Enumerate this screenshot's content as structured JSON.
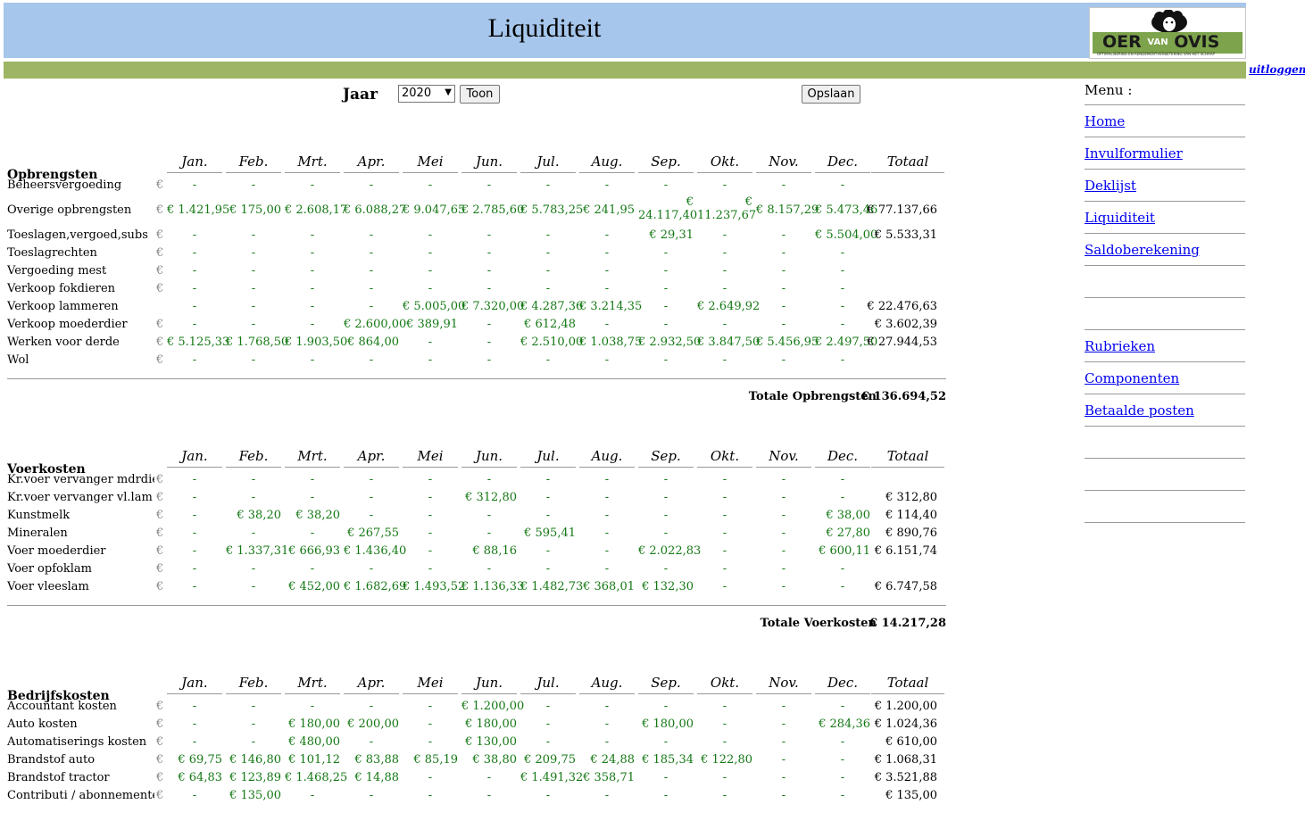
{
  "header": {
    "title": "Liquiditeit",
    "logout": "uitloggen"
  },
  "logo": {
    "text": "OER",
    "text_small": "VAN",
    "text2": "OVIS",
    "tagline": "OPTIMALISERING EN RENDEMENTVERBETERING VAN HET SCHAAP"
  },
  "controls": {
    "year_label": "Jaar",
    "year_value": "2020",
    "show_button": "Toon",
    "save_button": "Opslaan"
  },
  "menu": {
    "title": "Menu :",
    "items": [
      "Home",
      "Invulformulier",
      "Deklijst",
      "Liquiditeit",
      "Saldoberekening",
      "",
      "",
      "Rubrieken",
      "Componenten",
      "Betaalde posten",
      "",
      "",
      ""
    ]
  },
  "columns": [
    "Jan.",
    "Feb.",
    "Mrt.",
    "Apr.",
    "Mei",
    "Jun.",
    "Jul.",
    "Aug.",
    "Sep.",
    "Okt.",
    "Nov.",
    "Dec.",
    "Totaal"
  ],
  "sections": [
    {
      "title": "Opbrengsten",
      "total_label": "Totale Opbrengsten",
      "total_value": "€ 136.694,52",
      "rows": [
        {
          "label": "Beheersvergoeding",
          "euro": "€",
          "values": [
            "-",
            "-",
            "-",
            "-",
            "-",
            "-",
            "-",
            "-",
            "-",
            "-",
            "-",
            "-",
            ""
          ]
        },
        {
          "label": "Overige opbrengsten",
          "euro": "€",
          "tall": true,
          "values": [
            "€ 1.421,95",
            "€ 175,00",
            "€ 2.608,17",
            "€ 6.088,27",
            "€ 9.047,65",
            "€ 2.785,60",
            "€ 5.783,25",
            "€ 241,95",
            "€\n24.117,40",
            "€\n11.237,67",
            "€ 8.157,29",
            "€ 5.473,46",
            "€ 77.137,66"
          ]
        },
        {
          "label": "Toeslagen,vergoed,subs",
          "euro": "€",
          "values": [
            "-",
            "-",
            "-",
            "-",
            "-",
            "-",
            "-",
            "-",
            "€ 29,31",
            "-",
            "-",
            "€ 5.504,00",
            "€ 5.533,31"
          ]
        },
        {
          "label": "Toeslagrechten",
          "euro": "€",
          "values": [
            "-",
            "-",
            "-",
            "-",
            "-",
            "-",
            "-",
            "-",
            "-",
            "-",
            "-",
            "-",
            ""
          ]
        },
        {
          "label": "Vergoeding mest",
          "euro": "€",
          "values": [
            "-",
            "-",
            "-",
            "-",
            "-",
            "-",
            "-",
            "-",
            "-",
            "-",
            "-",
            "-",
            ""
          ]
        },
        {
          "label": "Verkoop fokdieren",
          "euro": "€",
          "values": [
            "-",
            "-",
            "-",
            "-",
            "-",
            "-",
            "-",
            "-",
            "-",
            "-",
            "-",
            "-",
            ""
          ]
        },
        {
          "label": "Verkoop lammeren",
          "euro": "",
          "values": [
            "-",
            "-",
            "-",
            "-",
            "€ 5.005,00",
            "€ 7.320,00",
            "€ 4.287,36",
            "€ 3.214,35",
            "-",
            "€ 2.649,92",
            "-",
            "-",
            "€ 22.476,63"
          ]
        },
        {
          "label": "Verkoop moederdier",
          "euro": "€",
          "values": [
            "-",
            "-",
            "-",
            "€ 2.600,00",
            "€ 389,91",
            "-",
            "€ 612,48",
            "-",
            "-",
            "-",
            "-",
            "-",
            "€ 3.602,39"
          ]
        },
        {
          "label": "Werken voor derde",
          "euro": "€",
          "values": [
            "€ 5.125,33",
            "€ 1.768,50",
            "€ 1.903,50",
            "€ 864,00",
            "-",
            "-",
            "€ 2.510,00",
            "€ 1.038,75",
            "€ 2.932,50",
            "€ 3.847,50",
            "€ 5.456,95",
            "€ 2.497,50",
            "€ 27.944,53"
          ]
        },
        {
          "label": "Wol",
          "euro": "€",
          "values": [
            "-",
            "-",
            "-",
            "-",
            "-",
            "-",
            "-",
            "-",
            "-",
            "-",
            "-",
            "-",
            ""
          ]
        }
      ]
    },
    {
      "title": "Voerkosten",
      "total_label": "Totale Voerkosten",
      "total_value": "€ 14.217,28",
      "rows": [
        {
          "label": "Kr.voer vervanger mdrdier",
          "euro": "€",
          "values": [
            "-",
            "-",
            "-",
            "-",
            "-",
            "-",
            "-",
            "-",
            "-",
            "-",
            "-",
            "-",
            ""
          ]
        },
        {
          "label": "Kr.voer vervanger vl.lam",
          "euro": "€",
          "values": [
            "-",
            "-",
            "-",
            "-",
            "-",
            "€ 312,80",
            "-",
            "-",
            "-",
            "-",
            "-",
            "-",
            "€ 312,80"
          ]
        },
        {
          "label": "Kunstmelk",
          "euro": "€",
          "values": [
            "-",
            "€ 38,20",
            "€ 38,20",
            "-",
            "-",
            "-",
            "-",
            "-",
            "-",
            "-",
            "-",
            "€ 38,00",
            "€ 114,40"
          ]
        },
        {
          "label": "Mineralen",
          "euro": "€",
          "values": [
            "-",
            "-",
            "-",
            "€ 267,55",
            "-",
            "-",
            "€ 595,41",
            "-",
            "-",
            "-",
            "-",
            "€ 27,80",
            "€ 890,76"
          ]
        },
        {
          "label": "Voer moederdier",
          "euro": "€",
          "values": [
            "-",
            "€ 1.337,31",
            "€ 666,93",
            "€ 1.436,40",
            "-",
            "€ 88,16",
            "-",
            "-",
            "€ 2.022,83",
            "-",
            "-",
            "€ 600,11",
            "€ 6.151,74"
          ]
        },
        {
          "label": "Voer opfoklam",
          "euro": "€",
          "values": [
            "-",
            "-",
            "-",
            "-",
            "-",
            "-",
            "-",
            "-",
            "-",
            "-",
            "-",
            "-",
            ""
          ]
        },
        {
          "label": "Voer vleeslam",
          "euro": "€",
          "values": [
            "-",
            "-",
            "€ 452,00",
            "€ 1.682,69",
            "€ 1.493,52",
            "€ 1.136,33",
            "€ 1.482,73",
            "€ 368,01",
            "€ 132,30",
            "-",
            "-",
            "-",
            "€ 6.747,58"
          ]
        }
      ]
    },
    {
      "title": "Bedrijfskosten",
      "total_label": "",
      "total_value": "",
      "rows": [
        {
          "label": "Accountant kosten",
          "euro": "€",
          "values": [
            "-",
            "-",
            "-",
            "-",
            "-",
            "€ 1.200,00",
            "-",
            "-",
            "-",
            "-",
            "-",
            "-",
            "€ 1.200,00"
          ]
        },
        {
          "label": "Auto kosten",
          "euro": "€",
          "values": [
            "-",
            "-",
            "€ 180,00",
            "€ 200,00",
            "-",
            "€ 180,00",
            "-",
            "-",
            "€ 180,00",
            "-",
            "-",
            "€ 284,36",
            "€ 1.024,36"
          ]
        },
        {
          "label": "Automatiserings kosten",
          "euro": "€",
          "values": [
            "-",
            "-",
            "€ 480,00",
            "-",
            "-",
            "€ 130,00",
            "-",
            "-",
            "-",
            "-",
            "-",
            "-",
            "€ 610,00"
          ]
        },
        {
          "label": "Brandstof auto",
          "euro": "€",
          "values": [
            "€ 69,75",
            "€ 146,80",
            "€ 101,12",
            "€ 83,88",
            "€ 85,19",
            "€ 38,80",
            "€ 209,75",
            "€ 24,88",
            "€ 185,34",
            "€ 122,80",
            "-",
            "-",
            "€ 1.068,31"
          ]
        },
        {
          "label": "Brandstof tractor",
          "euro": "€",
          "values": [
            "€ 64,83",
            "€ 123,89",
            "€ 1.468,25",
            "€ 14,88",
            "-",
            "-",
            "€ 1.491,32",
            "€ 358,71",
            "-",
            "-",
            "-",
            "-",
            "€ 3.521,88"
          ]
        },
        {
          "label": "Contributi / abonnementen",
          "euro": "€",
          "values": [
            "-",
            "€ 135,00",
            "-",
            "-",
            "-",
            "-",
            "-",
            "-",
            "-",
            "-",
            "-",
            "-",
            "€ 135,00"
          ]
        }
      ]
    }
  ]
}
